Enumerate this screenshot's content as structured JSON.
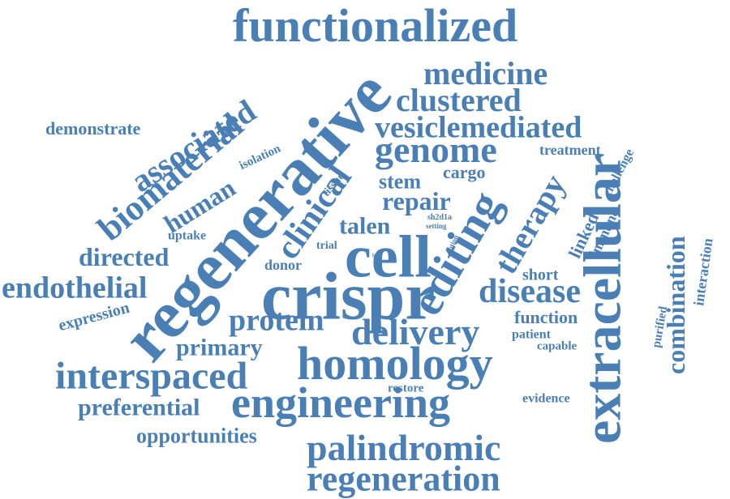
{
  "style": {
    "word_color": "#4a7fb5",
    "background": "#ffffff"
  },
  "words": [
    "functionalized",
    "regenerative",
    "crispr",
    "extracellular",
    "cell",
    "homology",
    "engineering",
    "editing",
    "interspaced",
    "palindromic",
    "regeneration",
    "delivery",
    "genome",
    "biomaterial",
    "disease",
    "medicine",
    "clustered",
    "vesiclemediated",
    "associated",
    "clinical",
    "protein",
    "therapy",
    "repair",
    "endothelial",
    "combination",
    "human",
    "directed",
    "primary",
    "preferential",
    "opportunities",
    "talen",
    "stem",
    "cargo",
    "demonstrate",
    "expression",
    "function",
    "treatment",
    "challenge",
    "linked",
    "immune",
    "interaction",
    "purified",
    "short",
    "patient",
    "capable",
    "evidence",
    "restore",
    "uptake",
    "donor",
    "trial",
    "isolation",
    "tissue",
    "sh2d1a",
    "setting",
    "option",
    "loci"
  ]
}
